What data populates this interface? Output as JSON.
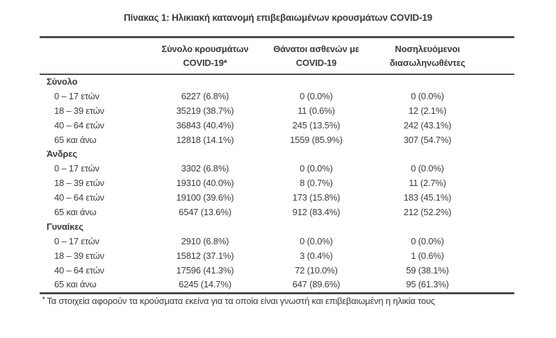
{
  "title": "Πίνακας 1: Ηλικιακή κατανομή επιβεβαιωμένων κρουσμάτων COVID-19",
  "table": {
    "columns": [
      {
        "line1": "Σύνολο κρουσμάτων",
        "line2": "COVID-19*"
      },
      {
        "line1": "Θάνατοι ασθενών με",
        "line2": "COVID-19"
      },
      {
        "line1": "Νοσηλευόμενοι",
        "line2": "διασωληνωθέντες"
      }
    ],
    "sections": [
      {
        "header": "Σύνολο",
        "rows": [
          {
            "label": "0 – 17 ετών",
            "cases": "6227 (6.8%)",
            "deaths": "0 (0.0%)",
            "intubated": "0 (0.0%)"
          },
          {
            "label": "18 – 39 ετών",
            "cases": "35219 (38.7%)",
            "deaths": "11 (0.6%)",
            "intubated": "12 (2.1%)"
          },
          {
            "label": "40 – 64 ετών",
            "cases": "36843 (40.4%)",
            "deaths": "245 (13.5%)",
            "intubated": "242 (43.1%)"
          },
          {
            "label": "65 και άνω",
            "cases": "12818 (14.1%)",
            "deaths": "1559 (85.9%)",
            "intubated": "307 (54.7%)"
          }
        ]
      },
      {
        "header": "Άνδρες",
        "rows": [
          {
            "label": "0 – 17 ετών",
            "cases": "3302 (6.8%)",
            "deaths": "0 (0.0%)",
            "intubated": "0 (0.0%)"
          },
          {
            "label": "18 – 39 ετών",
            "cases": "19310 (40.0%)",
            "deaths": "8 (0.7%)",
            "intubated": "11 (2.7%)"
          },
          {
            "label": "40 – 64 ετών",
            "cases": "19100 (39.6%)",
            "deaths": "173 (15.8%)",
            "intubated": "183 (45.1%)"
          },
          {
            "label": "65 και άνω",
            "cases": "6547 (13.6%)",
            "deaths": "912 (83.4%)",
            "intubated": "212 (52.2%)"
          }
        ]
      },
      {
        "header": "Γυναίκες",
        "rows": [
          {
            "label": "0 – 17 ετών",
            "cases": "2910 (6.8%)",
            "deaths": "0 (0.0%)",
            "intubated": "0 (0.0%)"
          },
          {
            "label": "18 – 39 ετών",
            "cases": "15812 (37.1%)",
            "deaths": "3 (0.4%)",
            "intubated": "1 (0.6%)"
          },
          {
            "label": "40 – 64 ετών",
            "cases": "17596 (41.3%)",
            "deaths": "72 (10.0%)",
            "intubated": "59 (38.1%)"
          },
          {
            "label": "65 και άνω",
            "cases": "6245 (14.7%)",
            "deaths": "647 (89.6%)",
            "intubated": "95 (61.3%)"
          }
        ]
      }
    ]
  },
  "footnote": {
    "marker": "*",
    "text": "Τα στοιχεία αφορούν τα κρούσματα εκείνα για τα οποία είναι γνωστή και επιβεβαιωμένη η ηλικία τους"
  },
  "colors": {
    "background": "#ffffff",
    "text": "#3b3b3b",
    "rule": "#4a4a4a"
  }
}
